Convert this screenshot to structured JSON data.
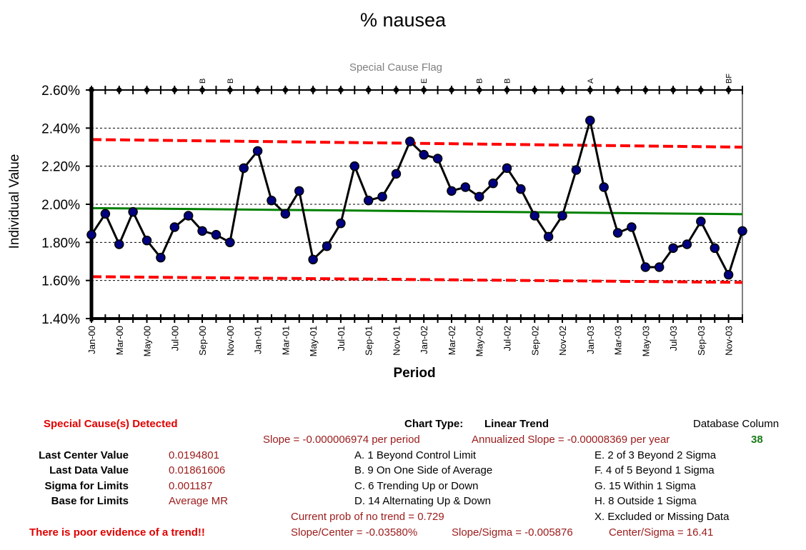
{
  "chart_data": {
    "type": "line",
    "title": "% nausea",
    "flag_title": "Special Cause Flag",
    "xlabel": "Period",
    "ylabel": "Individual Value",
    "ylim": [
      0.014,
      0.026
    ],
    "yticks": [
      0.014,
      0.016,
      0.018,
      0.02,
      0.022,
      0.024,
      0.026
    ],
    "ytick_labels": [
      "1.40%",
      "1.60%",
      "1.80%",
      "2.00%",
      "2.20%",
      "2.40%",
      "2.60%"
    ],
    "xtick_labels": [
      "Jan-00",
      "Mar-00",
      "May-00",
      "Jul-00",
      "Sep-00",
      "Nov-00",
      "Jan-01",
      "Mar-01",
      "May-01",
      "Jul-01",
      "Sep-01",
      "Nov-01",
      "Jan-02",
      "Mar-02",
      "May-02",
      "Jul-02",
      "Sep-02",
      "Nov-02",
      "Jan-03",
      "Mar-03",
      "May-03",
      "Jul-03",
      "Sep-03",
      "Nov-03"
    ],
    "grid": "horizontal dashed",
    "series": [
      {
        "name": "",
        "color": "#000000",
        "marker_color": "#000080",
        "values": [
          0.0184,
          0.0195,
          0.0179,
          0.0196,
          0.0181,
          0.0172,
          0.0188,
          0.0194,
          0.0186,
          0.0184,
          0.018,
          0.0219,
          0.0228,
          0.0202,
          0.0195,
          0.0207,
          0.0171,
          0.0178,
          0.019,
          0.022,
          0.0202,
          0.0204,
          0.0216,
          0.0233,
          0.0226,
          0.0224,
          0.0207,
          0.0209,
          0.0204,
          0.0211,
          0.0219,
          0.0208,
          0.0194,
          0.0183,
          0.0194,
          0.0218,
          0.0244,
          0.0209,
          0.0185,
          0.0188,
          0.0167,
          0.0167,
          0.0177,
          0.0179,
          0.0191,
          0.0177,
          0.0163,
          0.0186
        ]
      }
    ],
    "center_line": {
      "color": "#008000",
      "start": 0.0198,
      "end": 0.01948
    },
    "ucl": {
      "color": "#ff0000",
      "start": 0.0234,
      "end": 0.023
    },
    "lcl": {
      "color": "#ff0000",
      "start": 0.0162,
      "end": 0.0159
    },
    "flags": [
      {
        "index": 8,
        "label": "B"
      },
      {
        "index": 10,
        "label": "B"
      },
      {
        "index": 24,
        "label": "E"
      },
      {
        "index": 28,
        "label": "B"
      },
      {
        "index": 30,
        "label": "B"
      },
      {
        "index": 36,
        "label": "A"
      },
      {
        "index": 46,
        "label": "BF"
      }
    ]
  },
  "summary": {
    "special_cause": "Special Cause(s) Detected",
    "chart_type_label": "Chart Type:",
    "chart_type_value": "Linear Trend",
    "database_column_label": "Database Column",
    "database_column_value": "38",
    "slope": "Slope = -0.000006974 per period",
    "annualized_slope": "Annualized Slope = -0.00008369 per year",
    "last_center_label": "Last Center Value",
    "last_center_value": "0.0194801",
    "last_data_label": "Last Data Value",
    "last_data_value": "0.01861606",
    "sigma_label": "Sigma for Limits",
    "sigma_value": "0.001187",
    "base_label": "Base for Limits",
    "base_value": "Average MR",
    "rules_left": [
      "A.  1 Beyond Control Limit",
      "B.  9 On One Side of Average",
      "C.  6 Trending Up or Down",
      "D.  14 Alternating  Up & Down"
    ],
    "rules_right": [
      "E.   2 of 3 Beyond 2 Sigma",
      "F.   4 of 5 Beyond 1 Sigma",
      "G.   15 Within 1 Sigma",
      "H.   8 Outside 1 Sigma",
      "X.   Excluded or Missing Data"
    ],
    "prob_no_trend": "Current prob of no trend = 0.729",
    "trend_evidence": "There is poor evidence of a trend!!",
    "slope_center": "Slope/Center = -0.03580%",
    "slope_sigma": "Slope/Sigma = -0.005876",
    "center_sigma": "Center/Sigma = 16.41"
  }
}
